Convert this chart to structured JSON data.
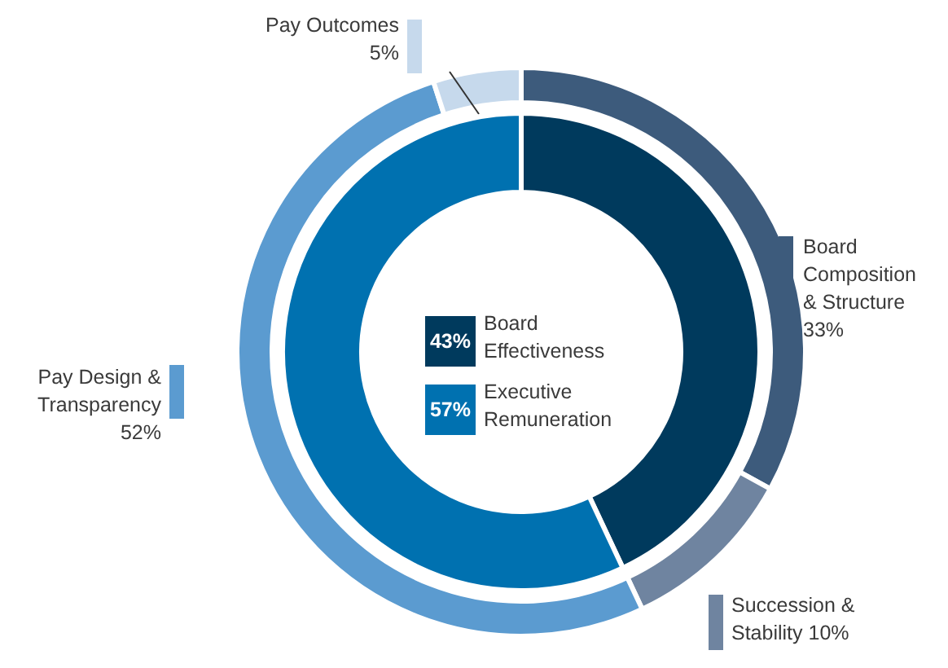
{
  "chart_data": [
    {
      "type": "donut",
      "categories": [
        "Board Composition & Structure",
        "Succession & Stability",
        "Pay Design & Transparency",
        "Pay Outcomes"
      ],
      "values": [
        33,
        10,
        52,
        5
      ],
      "value_labels": [
        "33%",
        "10%",
        "52%",
        "5%"
      ],
      "colors": [
        "#3d5b7c",
        "#6f84a0",
        "#5b9bd0",
        "#c6d9ec"
      ]
    },
    {
      "type": "donut",
      "categories": [
        "Board Effectiveness",
        "Executive Remuneration"
      ],
      "values": [
        43,
        57
      ],
      "value_labels": [
        "43%",
        "57%"
      ],
      "colors": [
        "#003a5d",
        "#0071b0"
      ]
    }
  ]
}
